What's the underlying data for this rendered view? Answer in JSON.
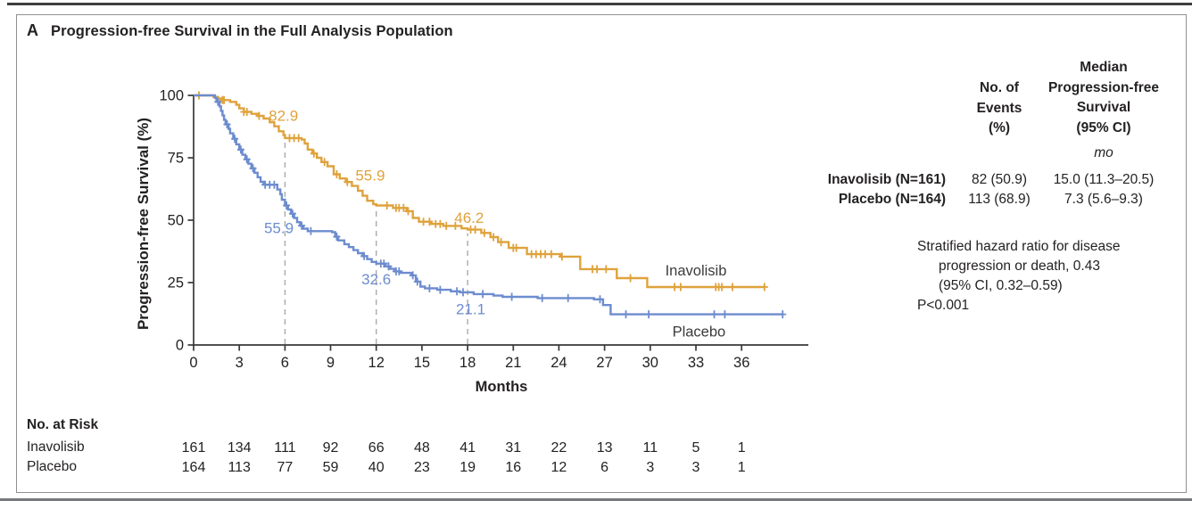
{
  "panel_label": "A",
  "title": "Progression-free Survival in the Full Analysis Population",
  "colors": {
    "inavolisib": "#dfa23c",
    "placebo": "#6d8ccf",
    "axis": "#3b3838",
    "text": "#242122",
    "dashed": "#aaaaaa",
    "series_label": "#3d3b3c"
  },
  "chart_data": {
    "type": "line",
    "subtype": "kaplan-meier-step",
    "title": "Progression-free Survival in the Full Analysis Population",
    "xlabel": "Months",
    "ylabel": "Progression-free Survival (%)",
    "xlim": [
      0,
      40.4
    ],
    "ylim": [
      0,
      100
    ],
    "x_ticks": [
      0,
      3,
      6,
      9,
      12,
      15,
      18,
      21,
      24,
      27,
      30,
      33,
      36
    ],
    "y_ticks": [
      0,
      25,
      50,
      75,
      100
    ],
    "grid": false,
    "dashed_guides_months": [
      6,
      12,
      18
    ],
    "series": [
      {
        "name": "Inavolisib",
        "color_key": "inavolisib",
        "label_pos": {
          "month": 33.0,
          "pct": 30.0
        },
        "landmarks": {
          "6": 82.9,
          "12": 55.9,
          "18": 46.2
        },
        "points": [
          [
            0,
            100
          ],
          [
            1.3,
            99.4
          ],
          [
            1.6,
            98.8
          ],
          [
            1.9,
            98.1
          ],
          [
            2.4,
            97.4
          ],
          [
            2.8,
            96.2
          ],
          [
            3.0,
            94.8
          ],
          [
            3.3,
            93.4
          ],
          [
            3.8,
            92.6
          ],
          [
            4.2,
            91.8
          ],
          [
            4.6,
            90.7
          ],
          [
            5.0,
            89.2
          ],
          [
            5.3,
            87.6
          ],
          [
            5.6,
            85.6
          ],
          [
            5.9,
            84.1
          ],
          [
            6.0,
            82.9
          ],
          [
            7.1,
            82.3
          ],
          [
            7.3,
            80.7
          ],
          [
            7.5,
            78.3
          ],
          [
            7.8,
            76.7
          ],
          [
            8.1,
            75.0
          ],
          [
            8.4,
            73.3
          ],
          [
            8.8,
            71.6
          ],
          [
            9.2,
            68.4
          ],
          [
            9.6,
            66.7
          ],
          [
            10.0,
            65.3
          ],
          [
            10.4,
            63.7
          ],
          [
            10.8,
            61.8
          ],
          [
            11.1,
            59.8
          ],
          [
            11.4,
            57.8
          ],
          [
            11.8,
            56.4
          ],
          [
            12.0,
            55.9
          ],
          [
            13.1,
            54.9
          ],
          [
            14.0,
            53.6
          ],
          [
            14.4,
            50.9
          ],
          [
            14.8,
            49.4
          ],
          [
            15.6,
            48.5
          ],
          [
            16.4,
            47.7
          ],
          [
            17.6,
            46.7
          ],
          [
            18.0,
            46.2
          ],
          [
            18.9,
            44.9
          ],
          [
            19.5,
            43.2
          ],
          [
            20.0,
            41.2
          ],
          [
            20.7,
            38.9
          ],
          [
            21.9,
            36.4
          ],
          [
            24.1,
            35.4
          ],
          [
            25.4,
            30.4
          ],
          [
            27.8,
            26.8
          ],
          [
            29.8,
            23.2
          ],
          [
            37.5,
            23.2
          ]
        ],
        "censor_months": [
          0.35,
          1.9,
          2.0,
          3.3,
          3.5,
          4.3,
          6.3,
          6.6,
          6.9,
          7.9,
          8.6,
          9.4,
          10.1,
          12.7,
          13.3,
          13.5,
          13.8,
          14.1,
          15.1,
          15.5,
          15.9,
          16.2,
          16.6,
          17.2,
          18.2,
          18.5,
          19.1,
          19.7,
          20.2,
          21.0,
          21.2,
          22.2,
          22.5,
          22.8,
          23.1,
          23.5,
          24.2,
          26.2,
          26.5,
          27.1,
          28.7,
          31.6,
          32.0,
          34.3,
          34.5,
          34.7,
          35.4,
          37.5
        ]
      },
      {
        "name": "Placebo",
        "color_key": "placebo",
        "label_pos": {
          "month": 33.2,
          "pct": 5.5
        },
        "landmarks": {
          "6": 55.9,
          "12": 32.6,
          "18": 21.1
        },
        "points": [
          [
            0,
            100
          ],
          [
            1.4,
            99.0
          ],
          [
            1.5,
            97.4
          ],
          [
            1.7,
            95.6
          ],
          [
            1.8,
            93.8
          ],
          [
            1.9,
            92.0
          ],
          [
            2.0,
            90.2
          ],
          [
            2.1,
            88.4
          ],
          [
            2.3,
            86.6
          ],
          [
            2.4,
            84.8
          ],
          [
            2.6,
            82.6
          ],
          [
            2.8,
            80.4
          ],
          [
            3.0,
            78.3
          ],
          [
            3.2,
            76.2
          ],
          [
            3.4,
            74.4
          ],
          [
            3.6,
            72.6
          ],
          [
            3.8,
            70.8
          ],
          [
            4.0,
            69.0
          ],
          [
            4.2,
            67.2
          ],
          [
            4.4,
            65.4
          ],
          [
            4.6,
            64.2
          ],
          [
            5.5,
            62.3
          ],
          [
            5.7,
            60.4
          ],
          [
            5.8,
            58.2
          ],
          [
            6.0,
            55.9
          ],
          [
            6.2,
            54.3
          ],
          [
            6.4,
            52.6
          ],
          [
            6.6,
            50.9
          ],
          [
            6.8,
            49.2
          ],
          [
            7.0,
            47.8
          ],
          [
            7.2,
            46.6
          ],
          [
            7.5,
            45.6
          ],
          [
            9.1,
            45.2
          ],
          [
            9.3,
            43.4
          ],
          [
            9.5,
            41.9
          ],
          [
            9.9,
            40.4
          ],
          [
            10.2,
            39.2
          ],
          [
            10.5,
            38.0
          ],
          [
            10.8,
            36.8
          ],
          [
            11.1,
            35.6
          ],
          [
            11.4,
            34.4
          ],
          [
            11.7,
            33.3
          ],
          [
            12.0,
            32.6
          ],
          [
            12.6,
            31.5
          ],
          [
            12.9,
            30.5
          ],
          [
            13.2,
            29.5
          ],
          [
            13.6,
            28.9
          ],
          [
            14.3,
            27.9
          ],
          [
            14.6,
            25.4
          ],
          [
            14.9,
            23.4
          ],
          [
            15.2,
            22.7
          ],
          [
            16.0,
            22.1
          ],
          [
            16.9,
            21.5
          ],
          [
            17.5,
            21.1
          ],
          [
            18.4,
            20.4
          ],
          [
            19.7,
            19.8
          ],
          [
            20.3,
            19.3
          ],
          [
            22.6,
            18.8
          ],
          [
            26.3,
            18.3
          ],
          [
            26.9,
            16.0
          ],
          [
            27.4,
            12.3
          ],
          [
            38.7,
            12.3
          ]
        ],
        "censor_months": [
          1.6,
          2.2,
          2.7,
          3.1,
          3.5,
          3.9,
          4.7,
          5.0,
          5.3,
          6.1,
          6.5,
          7.1,
          7.7,
          9.4,
          11.2,
          12.3,
          12.5,
          12.8,
          13.3,
          13.5,
          14.4,
          14.7,
          15.5,
          16.2,
          17.3,
          17.7,
          19.0,
          20.9,
          22.9,
          24.6,
          26.7,
          28.4,
          29.9,
          34.2,
          34.9,
          38.7
        ]
      }
    ],
    "annotations": [
      {
        "text": "82.9",
        "color_key": "inavolisib",
        "month": 5.9,
        "pct": 92.0
      },
      {
        "text": "55.9",
        "color_key": "inavolisib",
        "month": 11.6,
        "pct": 68.0
      },
      {
        "text": "46.2",
        "color_key": "inavolisib",
        "month": 18.1,
        "pct": 51.0
      },
      {
        "text": "55.9",
        "color_key": "placebo",
        "month": 5.6,
        "pct": 47.0
      },
      {
        "text": "32.6",
        "color_key": "placebo",
        "month": 12.0,
        "pct": 26.5
      },
      {
        "text": "21.1",
        "color_key": "placebo",
        "month": 18.2,
        "pct": 14.5
      }
    ],
    "at_risk": {
      "title": "No. at Risk",
      "months": [
        0,
        3,
        6,
        9,
        12,
        15,
        18,
        21,
        24,
        27,
        30,
        33,
        36
      ],
      "rows": [
        {
          "label": "Inavolisib",
          "values": [
            161,
            134,
            111,
            92,
            66,
            48,
            41,
            31,
            22,
            13,
            11,
            5,
            1
          ]
        },
        {
          "label": "Placebo",
          "values": [
            164,
            113,
            77,
            59,
            40,
            23,
            19,
            16,
            12,
            6,
            3,
            3,
            1
          ]
        }
      ]
    }
  },
  "stats_panel": {
    "col1_header": [
      "No. of",
      "Events",
      "(%)"
    ],
    "col2_header": [
      "Median",
      "Progression-free",
      "Survival",
      "(95% CI)"
    ],
    "unit": "mo",
    "rows": [
      {
        "label": "Inavolisib (N=161)",
        "events": "82 (50.9)",
        "median": "15.0 (11.3–20.5)"
      },
      {
        "label": "Placebo (N=164)",
        "events": "113 (68.9)",
        "median": "7.3 (5.6–9.3)"
      }
    ],
    "hr_lines": [
      "Stratified hazard ratio for disease",
      "progression or death, 0.43",
      "(95% CI, 0.32–0.59)"
    ],
    "p_value": "P<0.001"
  }
}
